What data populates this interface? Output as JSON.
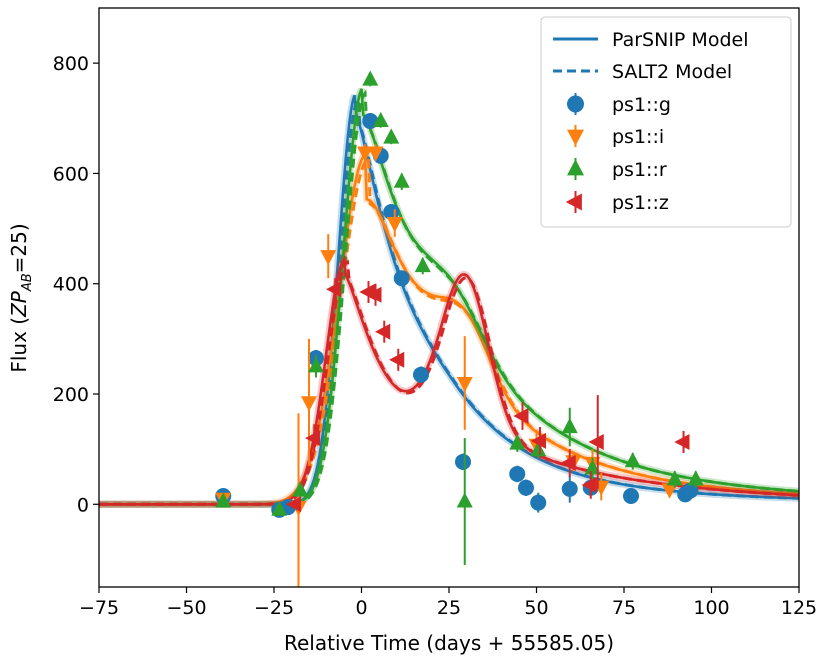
{
  "chart_data": {
    "type": "scatter",
    "xlabel": "Relative Time (days + 55585.05)",
    "ylabel_prefix": "Flux (",
    "ylabel_zp": "ZP",
    "ylabel_sub": "AB",
    "ylabel_suffix": "=25)",
    "xlim": [
      -75,
      125
    ],
    "ylim": [
      -150,
      900
    ],
    "xticks": [
      -75,
      -50,
      -25,
      0,
      25,
      50,
      75,
      100,
      125
    ],
    "yticks": [
      0,
      200,
      400,
      600,
      800
    ],
    "legend_position": "top-right",
    "legend": {
      "lines": [
        {
          "label": "ParSNIP Model",
          "style": "solid",
          "color": "#1f77b4"
        },
        {
          "label": "SALT2 Model",
          "style": "dashed",
          "color": "#1f77b4"
        }
      ]
    },
    "series": [
      {
        "name": "ps1::g",
        "color": "#1f77b4",
        "marker": "circle",
        "model": {
          "t0": -1.5,
          "amp": 745,
          "rise": 4.5,
          "fall": 11,
          "b2_t": 30,
          "b2_amp": 0,
          "b2_w": 10,
          "tail_amp": 40,
          "tail_tau": 70
        },
        "points": [
          {
            "x": -39.5,
            "y": 15,
            "e": 8
          },
          {
            "x": -23.5,
            "y": -10,
            "e": 8
          },
          {
            "x": -21,
            "y": -5,
            "e": 8
          },
          {
            "x": -13,
            "y": 265,
            "e": 15
          },
          {
            "x": 2.5,
            "y": 695,
            "e": 12
          },
          {
            "x": 5.5,
            "y": 632,
            "e": 12
          },
          {
            "x": 8.5,
            "y": 530,
            "e": 12
          },
          {
            "x": 11.5,
            "y": 410,
            "e": 12
          },
          {
            "x": 17,
            "y": 235,
            "e": 15
          },
          {
            "x": 29,
            "y": 77,
            "e": 15
          },
          {
            "x": 44.5,
            "y": 55,
            "e": 15
          },
          {
            "x": 47,
            "y": 30,
            "e": 15
          },
          {
            "x": 50.5,
            "y": 3,
            "e": 18
          },
          {
            "x": 59.5,
            "y": 28,
            "e": 25
          },
          {
            "x": 65.5,
            "y": 30,
            "e": 15
          },
          {
            "x": 77,
            "y": 15,
            "e": 12
          },
          {
            "x": 92.5,
            "y": 18,
            "e": 12
          },
          {
            "x": 94,
            "y": 25,
            "e": 12
          }
        ]
      },
      {
        "name": "ps1::i",
        "color": "#ff7f0e",
        "marker": "triangle-down",
        "model": {
          "t0": 1.5,
          "amp": 635,
          "rise": 7,
          "fall": 13,
          "b2_t": 30,
          "b2_amp": 95,
          "b2_w": 10,
          "tail_amp": 70,
          "tail_tau": 65
        },
        "points": [
          {
            "x": -39.5,
            "y": 10,
            "e": 8
          },
          {
            "x": -18,
            "y": -5,
            "e": 170
          },
          {
            "x": -15,
            "y": 185,
            "e": 115
          },
          {
            "x": -9.5,
            "y": 450,
            "e": 40
          },
          {
            "x": 1,
            "y": 638,
            "e": 15
          },
          {
            "x": 4,
            "y": 638,
            "e": 15
          },
          {
            "x": 9.5,
            "y": 510,
            "e": 25
          },
          {
            "x": 29.5,
            "y": 220,
            "e": 85
          },
          {
            "x": 50,
            "y": 108,
            "e": 20
          },
          {
            "x": 60.5,
            "y": 78,
            "e": 18
          },
          {
            "x": 66,
            "y": 75,
            "e": 25
          },
          {
            "x": 68.5,
            "y": 32,
            "e": 25
          },
          {
            "x": 88,
            "y": 27,
            "e": 15
          }
        ]
      },
      {
        "name": "ps1::r",
        "color": "#2ca02c",
        "marker": "triangle-up",
        "model": {
          "t0": 0.5,
          "amp": 755,
          "rise": 5,
          "fall": 14,
          "b2_t": 28,
          "b2_amp": 60,
          "b2_w": 11,
          "tail_amp": 75,
          "tail_tau": 70
        },
        "points": [
          {
            "x": -39.5,
            "y": 5,
            "e": 8
          },
          {
            "x": -23.5,
            "y": -10,
            "e": 8
          },
          {
            "x": -17.5,
            "y": 25,
            "e": 15
          },
          {
            "x": -13,
            "y": 250,
            "e": 20
          },
          {
            "x": 2.5,
            "y": 770,
            "e": 12
          },
          {
            "x": 5.5,
            "y": 695,
            "e": 12
          },
          {
            "x": 8.5,
            "y": 665,
            "e": 12
          },
          {
            "x": 11.5,
            "y": 585,
            "e": 15
          },
          {
            "x": 17.5,
            "y": 432,
            "e": 15
          },
          {
            "x": 29.5,
            "y": 5,
            "e": 115
          },
          {
            "x": 44.5,
            "y": 110,
            "e": 15
          },
          {
            "x": 50.5,
            "y": 98,
            "e": 15
          },
          {
            "x": 59.5,
            "y": 140,
            "e": 35
          },
          {
            "x": 66,
            "y": 65,
            "e": 20
          },
          {
            "x": 77.5,
            "y": 78,
            "e": 15
          },
          {
            "x": 89.5,
            "y": 45,
            "e": 15
          },
          {
            "x": 95.5,
            "y": 45,
            "e": 15
          }
        ]
      },
      {
        "name": "ps1::z",
        "color": "#d62728",
        "marker": "triangle-left",
        "model": {
          "t0": -4.5,
          "amp": 445,
          "rise": 5,
          "fall": 9,
          "b2_t": 30,
          "b2_amp": 255,
          "b2_w": 9,
          "tail_amp": 120,
          "tail_tau": 50
        },
        "points": [
          {
            "x": -19,
            "y": 0,
            "e": 8
          },
          {
            "x": -13.5,
            "y": 120,
            "e": 25
          },
          {
            "x": -7.5,
            "y": 390,
            "e": 20
          },
          {
            "x": 2,
            "y": 385,
            "e": 20
          },
          {
            "x": 4,
            "y": 380,
            "e": 20
          },
          {
            "x": 6.5,
            "y": 313,
            "e": 20
          },
          {
            "x": 10.5,
            "y": 262,
            "e": 20
          },
          {
            "x": 46,
            "y": 160,
            "e": 25
          },
          {
            "x": 51,
            "y": 115,
            "e": 25
          },
          {
            "x": 59.5,
            "y": 75,
            "e": 25
          },
          {
            "x": 65.5,
            "y": 35,
            "e": 25
          },
          {
            "x": 67.5,
            "y": 113,
            "e": 85
          },
          {
            "x": 92,
            "y": 113,
            "e": 20
          }
        ]
      }
    ]
  }
}
